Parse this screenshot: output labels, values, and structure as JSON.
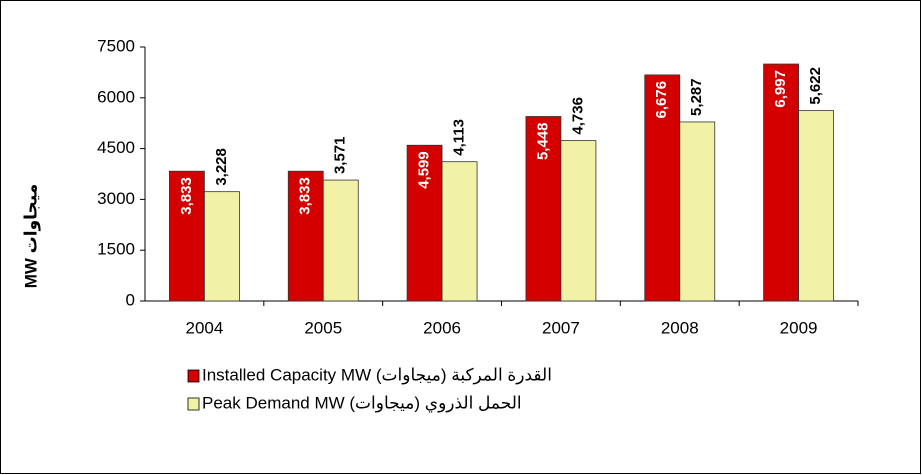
{
  "chart_data": {
    "type": "bar",
    "categories": [
      "2004",
      "2005",
      "2006",
      "2007",
      "2008",
      "2009"
    ],
    "series": [
      {
        "name": "Installed Capacity MW القدرة المركبة (ميجاوات)",
        "color": "#d40000",
        "values": [
          3833,
          3833,
          4599,
          5448,
          6676,
          6997
        ],
        "value_labels": [
          "3,833",
          "3,833",
          "4,599",
          "5,448",
          "6,676",
          "6,997"
        ]
      },
      {
        "name": "Peak Demand MW الحمل الذروي (ميجاوات)",
        "color": "#f2f2a6",
        "values": [
          3228,
          3571,
          4113,
          4736,
          5287,
          5622
        ],
        "value_labels": [
          "3,228",
          "3,571",
          "4,113",
          "4,736",
          "5,287",
          "5,622"
        ]
      }
    ],
    "y_label": "MW ميجاوات",
    "ylim": [
      0,
      7500
    ],
    "yticks": [
      0,
      1500,
      3000,
      4500,
      6000,
      7500
    ]
  }
}
